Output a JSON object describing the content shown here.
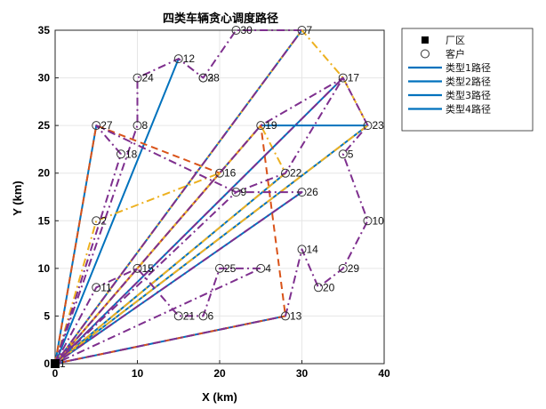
{
  "chart_data": {
    "type": "scatter",
    "title": "四类车辆贪心调度路径",
    "xlabel": "X (km)",
    "ylabel": "Y (km)",
    "xlim": [
      0,
      40
    ],
    "ylim": [
      0,
      35
    ],
    "xticks": [
      "0",
      "10",
      "20",
      "30",
      "40"
    ],
    "yticks": [
      "0",
      "5",
      "10",
      "15",
      "20",
      "25",
      "30",
      "35"
    ],
    "grid": true,
    "legend_position": "outside-top-right",
    "legend": [
      {
        "label": "厂区",
        "marker": "square"
      },
      {
        "label": "客户",
        "marker": "circle"
      },
      {
        "label": "类型1路径",
        "marker": "line"
      },
      {
        "label": "类型2路径",
        "marker": "line"
      },
      {
        "label": "类型3路径",
        "marker": "line"
      },
      {
        "label": "类型4路径",
        "marker": "line"
      }
    ],
    "depot": {
      "x": 0,
      "y": 0,
      "label": "厂区"
    },
    "customers": [
      {
        "id": "1",
        "x": 0,
        "y": 0
      },
      {
        "id": "2",
        "x": 5,
        "y": 15
      },
      {
        "id": "3",
        "x": 18,
        "y": 30
      },
      {
        "id": "4",
        "x": 25,
        "y": 10
      },
      {
        "id": "5",
        "x": 35,
        "y": 22
      },
      {
        "id": "6",
        "x": 18,
        "y": 5
      },
      {
        "id": "7",
        "x": 30,
        "y": 35
      },
      {
        "id": "8",
        "x": 10,
        "y": 25
      },
      {
        "id": "9",
        "x": 22,
        "y": 18
      },
      {
        "id": "10",
        "x": 38,
        "y": 15
      },
      {
        "id": "11",
        "x": 5,
        "y": 8
      },
      {
        "id": "12",
        "x": 15,
        "y": 32
      },
      {
        "id": "13",
        "x": 28,
        "y": 5
      },
      {
        "id": "14",
        "x": 30,
        "y": 12
      },
      {
        "id": "15",
        "x": 10,
        "y": 10
      },
      {
        "id": "16",
        "x": 20,
        "y": 20
      },
      {
        "id": "17",
        "x": 35,
        "y": 30
      },
      {
        "id": "18",
        "x": 8,
        "y": 22
      },
      {
        "id": "19",
        "x": 25,
        "y": 25
      },
      {
        "id": "20",
        "x": 32,
        "y": 8
      },
      {
        "id": "21",
        "x": 15,
        "y": 5
      },
      {
        "id": "22",
        "x": 28,
        "y": 20
      },
      {
        "id": "23",
        "x": 38,
        "y": 25
      },
      {
        "id": "24",
        "x": 10,
        "y": 30
      },
      {
        "id": "25",
        "x": 20,
        "y": 10
      },
      {
        "id": "26",
        "x": 30,
        "y": 18
      },
      {
        "id": "27",
        "x": 5,
        "y": 25
      },
      {
        "id": "28",
        "x": 18,
        "y": 30
      },
      {
        "id": "29",
        "x": 35,
        "y": 10
      },
      {
        "id": "30",
        "x": 22,
        "y": 35
      }
    ],
    "routes": [
      {
        "series": "类型1路径",
        "color": "#0072bd",
        "dash": "solid",
        "width": 2.0,
        "stops": [
          [
            0,
            0
          ],
          [
            0,
            0
          ],
          [
            28,
            5
          ],
          [
            0,
            0
          ],
          [
            25,
            25
          ],
          [
            0,
            0
          ],
          [
            38,
            25
          ],
          [
            25,
            25
          ],
          [
            0,
            0
          ],
          [
            35,
            30
          ],
          [
            0,
            0
          ],
          [
            15,
            32
          ],
          [
            0,
            0
          ],
          [
            30,
            35
          ],
          [
            0,
            0
          ],
          [
            5,
            25
          ],
          [
            0,
            0
          ],
          [
            10,
            10
          ],
          [
            0,
            0
          ],
          [
            30,
            18
          ],
          [
            0,
            0
          ],
          [
            28,
            20
          ],
          [
            0,
            0
          ]
        ]
      },
      {
        "series": "类型2路径",
        "color": "#d95319",
        "dash": "dashed",
        "width": 2.0,
        "stops": [
          [
            0,
            0
          ],
          [
            5,
            25
          ],
          [
            20,
            20
          ],
          [
            0,
            0
          ],
          [
            25,
            25
          ],
          [
            28,
            5
          ],
          [
            0,
            0
          ]
        ]
      },
      {
        "series": "类型3路径",
        "color": "#edb120",
        "dash": "dashdot",
        "width": 2.0,
        "stops": [
          [
            0,
            0
          ],
          [
            5,
            15
          ],
          [
            20,
            20
          ],
          [
            0,
            0
          ],
          [
            30,
            35
          ],
          [
            35,
            30
          ],
          [
            38,
            25
          ],
          [
            0,
            0
          ],
          [
            25,
            25
          ],
          [
            28,
            20
          ],
          [
            0,
            0
          ]
        ]
      },
      {
        "series": "类型4路径",
        "color": "#7e2f8e",
        "dash": "dashdot",
        "width": 2.0,
        "stops": [
          [
            0,
            0
          ],
          [
            8,
            22
          ],
          [
            5,
            25
          ],
          [
            22,
            18
          ],
          [
            30,
            18
          ],
          [
            0,
            0
          ],
          [
            5,
            8
          ],
          [
            10,
            10
          ],
          [
            15,
            5
          ],
          [
            18,
            5
          ],
          [
            20,
            10
          ],
          [
            25,
            10
          ],
          [
            0,
            0
          ],
          [
            10,
            25
          ],
          [
            10,
            30
          ],
          [
            15,
            32
          ],
          [
            18,
            30
          ],
          [
            22,
            35
          ],
          [
            30,
            35
          ],
          [
            0,
            0
          ],
          [
            25,
            25
          ],
          [
            35,
            30
          ],
          [
            38,
            25
          ],
          [
            35,
            22
          ],
          [
            38,
            15
          ],
          [
            35,
            10
          ],
          [
            32,
            8
          ],
          [
            30,
            12
          ],
          [
            28,
            5
          ],
          [
            0,
            0
          ],
          [
            22,
            18
          ],
          [
            28,
            20
          ],
          [
            35,
            30
          ],
          [
            0,
            0
          ]
        ]
      }
    ]
  }
}
